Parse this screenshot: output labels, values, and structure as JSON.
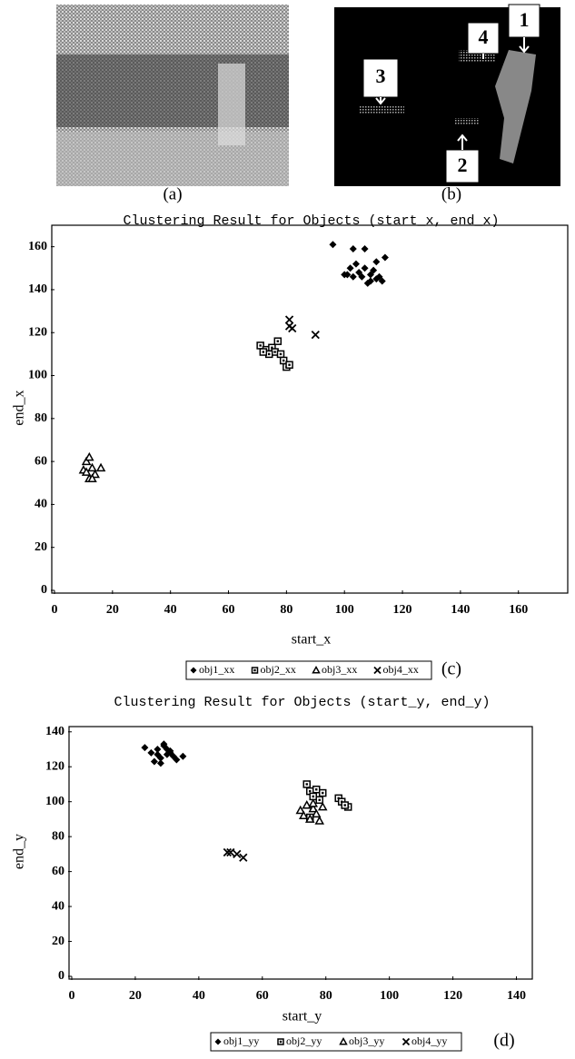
{
  "figure_a": {
    "label": "(a)"
  },
  "figure_b": {
    "label": "(b)",
    "markers": [
      "1",
      "2",
      "3",
      "4"
    ]
  },
  "chart_data": [
    {
      "type": "scatter",
      "title": "Clustering Result for Objects (start_x, end_x)",
      "x_label": "start_x",
      "y_label": "end_x",
      "label": "(c)",
      "xlim": [
        0,
        177
      ],
      "ylim": [
        0,
        170
      ],
      "xticks": [
        0,
        20,
        40,
        60,
        80,
        100,
        120,
        140,
        160
      ],
      "yticks": [
        0,
        20,
        40,
        60,
        80,
        100,
        120,
        140,
        160
      ],
      "series": [
        {
          "name": "obj1_xx",
          "marker": "diamond",
          "color": "#000000",
          "x": [
            96,
            103,
            107,
            114,
            101,
            103,
            105,
            107,
            109,
            111,
            113,
            104,
            106,
            108,
            110,
            112,
            102,
            111,
            100,
            109
          ],
          "y": [
            161,
            159,
            159,
            155,
            147,
            146,
            148,
            150,
            147,
            145,
            144,
            152,
            146,
            143,
            149,
            146,
            150,
            153,
            147,
            144
          ]
        },
        {
          "name": "obj2_xx",
          "marker": "square",
          "color": "#000000",
          "x": [
            71,
            73,
            75,
            77,
            76,
            78,
            79,
            80,
            81,
            74,
            72
          ],
          "y": [
            114,
            112,
            113,
            116,
            111,
            110,
            107,
            104,
            105,
            110,
            111
          ]
        },
        {
          "name": "obj3_xx",
          "marker": "triangle",
          "color": "#000000",
          "x": [
            11,
            12,
            13,
            14,
            10,
            12,
            13,
            16,
            11
          ],
          "y": [
            60,
            62,
            57,
            54,
            56,
            52,
            52,
            57,
            55
          ]
        },
        {
          "name": "obj4_xx",
          "marker": "cross",
          "color": "#000000",
          "x": [
            81,
            82,
            81,
            90
          ],
          "y": [
            126,
            122,
            123,
            119
          ]
        }
      ]
    },
    {
      "type": "scatter",
      "title": "Clustering Result for Objects (start_y, end_y)",
      "x_label": "start_y",
      "y_label": "end_y",
      "label": "(d)",
      "xlim": [
        0,
        145
      ],
      "ylim": [
        0,
        143
      ],
      "xticks": [
        0,
        20,
        40,
        60,
        80,
        100,
        120,
        140
      ],
      "yticks": [
        0,
        20,
        40,
        60,
        80,
        100,
        120,
        140
      ],
      "series": [
        {
          "name": "obj1_yy",
          "marker": "diamond",
          "color": "#000000",
          "x": [
            23,
            25,
            27,
            28,
            29,
            30,
            31,
            32,
            33,
            35,
            26,
            28,
            30,
            27,
            29,
            31
          ],
          "y": [
            131,
            128,
            130,
            125,
            132,
            127,
            129,
            126,
            124,
            126,
            123,
            122,
            130,
            127,
            133,
            128
          ]
        },
        {
          "name": "obj2_yy",
          "marker": "square",
          "color": "#000000",
          "x": [
            74,
            75,
            76,
            77,
            78,
            79,
            84,
            85,
            87,
            86,
            75
          ],
          "y": [
            110,
            106,
            103,
            107,
            101,
            105,
            102,
            100,
            97,
            98,
            91
          ]
        },
        {
          "name": "obj3_yy",
          "marker": "triangle",
          "color": "#000000",
          "x": [
            72,
            74,
            75,
            76,
            77,
            78,
            79,
            73,
            76
          ],
          "y": [
            95,
            98,
            90,
            96,
            93,
            89,
            97,
            92,
            99
          ]
        },
        {
          "name": "obj4_yy",
          "marker": "cross",
          "color": "#000000",
          "x": [
            49,
            50,
            52,
            54
          ],
          "y": [
            71,
            71,
            70,
            68
          ]
        }
      ]
    }
  ]
}
